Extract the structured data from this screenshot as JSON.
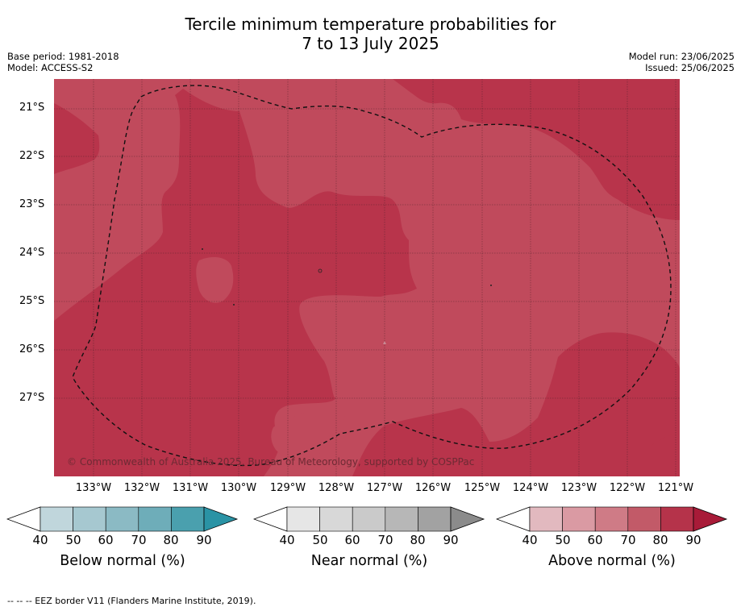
{
  "title_line1": "Tercile minimum temperature probabilities for",
  "title_line2": "7 to 13 July 2025",
  "base_period": "Base period: 1981-2018",
  "model": "Model: ACCESS-S2",
  "model_run": "Model run: 23/06/2025",
  "issued": "Issued: 25/06/2025",
  "lat_labels": [
    "21°S",
    "22°S",
    "23°S",
    "24°S",
    "25°S",
    "26°S",
    "27°S"
  ],
  "lon_labels": [
    "133°W",
    "132°W",
    "131°W",
    "130°W",
    "129°W",
    "128°W",
    "127°W",
    "126°W",
    "125°W",
    "124°W",
    "123°W",
    "122°W",
    "121°W"
  ],
  "copyright": "© Commonwealth of Australia 2025, Bureau of Meteorology, supported by COSPPac",
  "colorbars": [
    {
      "title": "Below normal (%)",
      "ticks": [
        "40",
        "50",
        "60",
        "70",
        "80",
        "90"
      ],
      "colors": [
        "#ffffff",
        "#c0d6dc",
        "#a6c8d0",
        "#8bbac4",
        "#6eadb9",
        "#4aa0ae",
        "#2a93a5"
      ]
    },
    {
      "title": "Near normal (%)",
      "ticks": [
        "40",
        "50",
        "60",
        "70",
        "80",
        "90"
      ],
      "colors": [
        "#ffffff",
        "#e6e6e6",
        "#d8d8d8",
        "#cacaca",
        "#b7b7b7",
        "#a2a2a2",
        "#8b8b8b"
      ]
    },
    {
      "title": "Above normal (%)",
      "ticks": [
        "40",
        "50",
        "60",
        "70",
        "80",
        "90"
      ],
      "colors": [
        "#ffffff",
        "#e2b9bf",
        "#da9aa3",
        "#cf7b86",
        "#c25a68",
        "#b5334a",
        "#a81b38"
      ]
    }
  ],
  "footnote": "--  --  -- EEZ border V11 (Flanders Marine Institute, 2019).",
  "map_colors": {
    "above_70_80": "#c04a5c",
    "above_80_90": "#b8344b"
  }
}
